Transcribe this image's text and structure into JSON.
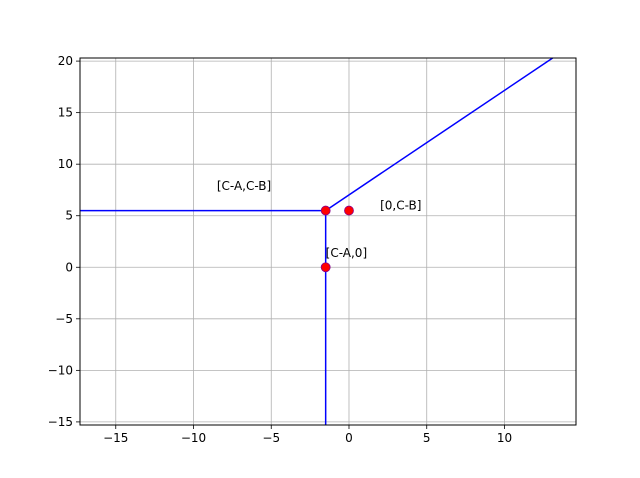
{
  "chart_data": {
    "type": "line",
    "title": "",
    "xlabel": "",
    "ylabel": "",
    "xlim": [
      -17.3,
      14.6
    ],
    "ylim": [
      -15.3,
      20.3
    ],
    "grid": true,
    "xticks": [
      -15,
      -10,
      -5,
      0,
      5,
      10
    ],
    "yticks": [
      -15,
      -10,
      -5,
      0,
      5,
      10,
      15,
      20
    ],
    "xtick_labels": [
      "−15",
      "−10",
      "−5",
      "0",
      "5",
      "10"
    ],
    "ytick_labels": [
      "−15",
      "−10",
      "−5",
      "0",
      "5",
      "10",
      "15",
      "20"
    ],
    "series": [
      {
        "color": "#0000ff",
        "x": [
          -17.3,
          -1.5
        ],
        "y": [
          5.5,
          5.5
        ]
      },
      {
        "color": "#0000ff",
        "x": [
          -1.5,
          -1.5
        ],
        "y": [
          5.5,
          -15.3
        ]
      },
      {
        "color": "#0000ff",
        "x": [
          -1.5,
          13.1
        ],
        "y": [
          5.5,
          20.3
        ]
      }
    ],
    "points": {
      "color": "#ff0000",
      "edge_color": "#8b008b",
      "x": [
        -1.5,
        0,
        -1.5
      ],
      "y": [
        5.5,
        5.5,
        0
      ]
    },
    "annotations": [
      {
        "text": "[C-A,C-B]",
        "x": -8.5,
        "y": 7.5
      },
      {
        "text": "[0,C-B]",
        "x": 2,
        "y": 5.6
      },
      {
        "text": "[C-A,0]",
        "x": -1.5,
        "y": 1.0
      }
    ]
  }
}
